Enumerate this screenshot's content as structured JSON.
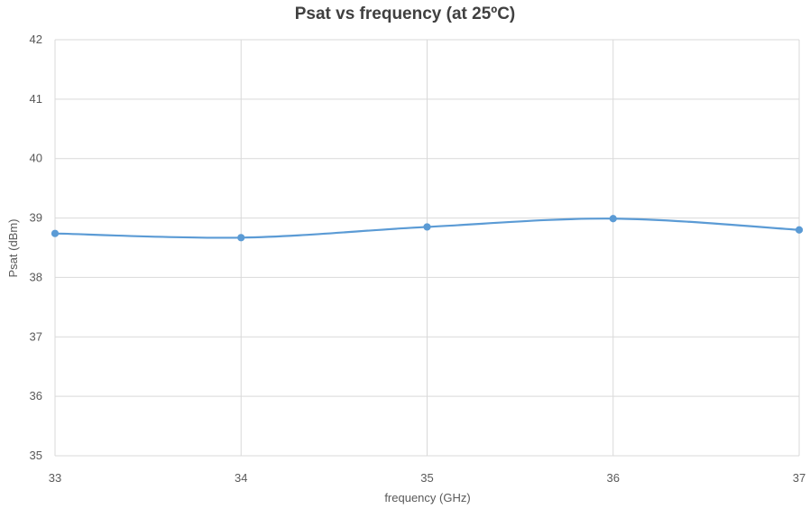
{
  "chart_data": {
    "type": "line",
    "title": "Psat vs frequency (at 25ºC)",
    "xlabel": "frequency (GHz)",
    "ylabel": "Psat (dBm)",
    "x": [
      33,
      34,
      35,
      36,
      37
    ],
    "series": [
      {
        "values": [
          38.74,
          38.67,
          38.85,
          38.99,
          38.8
        ],
        "color": "#5b9bd5"
      }
    ],
    "xlim": [
      33,
      37
    ],
    "ylim": [
      35,
      42
    ],
    "xticks": [
      33,
      34,
      35,
      36,
      37
    ],
    "yticks": [
      35,
      36,
      37,
      38,
      39,
      40,
      41,
      42
    ],
    "grid": "on",
    "legend": "none",
    "smooth": true
  }
}
